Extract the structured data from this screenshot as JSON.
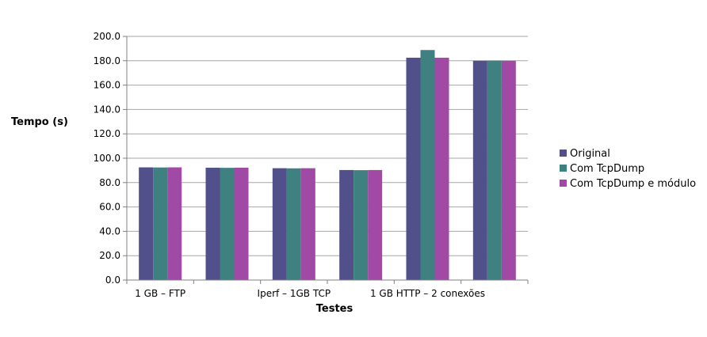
{
  "chart_data": {
    "type": "bar",
    "title": "",
    "xlabel": "Testes",
    "ylabel": "Tempo (s)",
    "ylim": [
      0,
      200
    ],
    "yticks": [
      "0.0",
      "20.0",
      "40.0",
      "60.0",
      "80.0",
      "100.0",
      "120.0",
      "140.0",
      "160.0",
      "180.0",
      "200.0"
    ],
    "grid": "horizontal",
    "legend_position": "right",
    "categories": [
      "1 GB – FTP",
      "",
      "Iperf – 1GB TCP",
      "",
      "1 GB HTTP – 2 conexões",
      ""
    ],
    "series": [
      {
        "name": "Original",
        "color": "#52508a",
        "values": [
          92.5,
          92.2,
          91.8,
          90.3,
          182.5,
          180.0
        ]
      },
      {
        "name": "Com TcpDump",
        "color": "#3f8080",
        "values": [
          92.4,
          92.1,
          91.7,
          90.2,
          188.8,
          180.1
        ]
      },
      {
        "name": "Com TcpDump e módulo",
        "color": "#a04aa6",
        "values": [
          92.5,
          92.2,
          91.8,
          90.3,
          182.5,
          180.0
        ]
      }
    ]
  }
}
